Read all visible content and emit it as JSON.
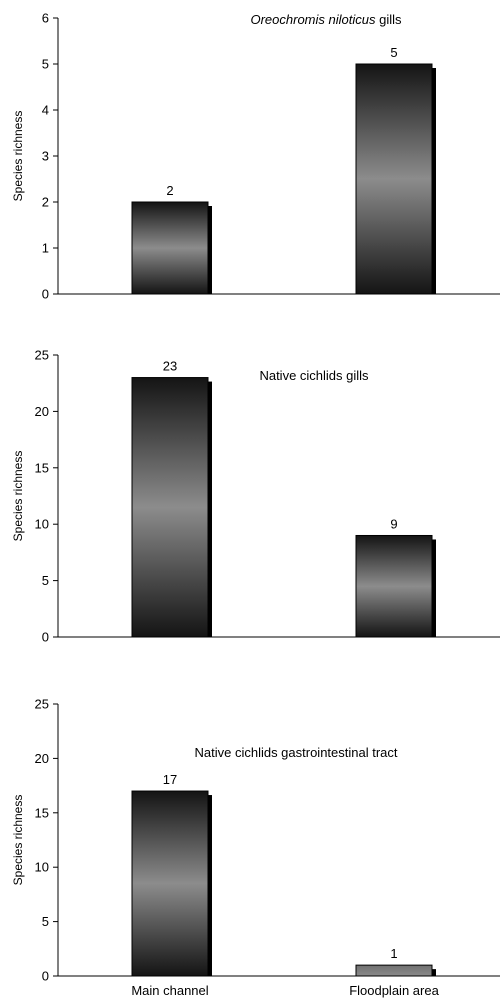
{
  "chart_data": [
    {
      "type": "bar",
      "title_parts": [
        {
          "text": "Oreochromis niloticus",
          "italic": true
        },
        {
          "text": " gills",
          "italic": false
        }
      ],
      "categories": [
        "Main channel",
        "Floodplain area"
      ],
      "values": [
        2,
        5
      ],
      "ylabel": "Species richness",
      "ylim": [
        0,
        6
      ],
      "yticks": [
        0,
        1,
        2,
        3,
        4,
        5,
        6
      ],
      "show_xticklabels": false,
      "grid": false,
      "legend": "none"
    },
    {
      "type": "bar",
      "title_parts": [
        {
          "text": "Native cichlids gills",
          "italic": false
        }
      ],
      "categories": [
        "Main channel",
        "Floodplain area"
      ],
      "values": [
        23,
        9
      ],
      "ylabel": "Species richness",
      "ylim": [
        0,
        25
      ],
      "yticks": [
        0,
        5,
        10,
        15,
        20,
        25
      ],
      "show_xticklabels": false,
      "grid": false,
      "legend": "none"
    },
    {
      "type": "bar",
      "title_parts": [
        {
          "text": "Native cichlids  gastrointestinal tract",
          "italic": false
        }
      ],
      "categories": [
        "Main channel",
        "Floodplain area"
      ],
      "values": [
        17,
        1
      ],
      "ylabel": "Species richness",
      "ylim": [
        0,
        25
      ],
      "yticks": [
        0,
        5,
        10,
        15,
        20,
        25
      ],
      "show_xticklabels": true,
      "grid": false,
      "legend": "none"
    }
  ]
}
